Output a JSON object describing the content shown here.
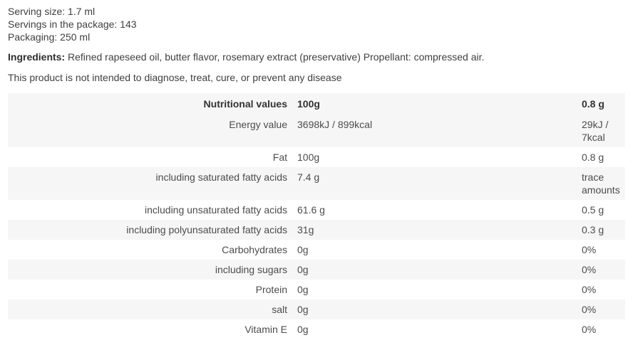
{
  "product_info": {
    "serving_size": "Serving size: 1.7 ml",
    "servings_in_package": "Servings in the package: 143",
    "packaging": "Packaging: 250 ml",
    "ingredients_label": "Ingredients:",
    "ingredients_text": " Refined rapeseed oil, butter flavor, rosemary extract (preservative) Propellant: compressed air.",
    "disclaimer": "This product is not intended to diagnose, treat, cure, or prevent any disease"
  },
  "nutrition_table": {
    "stripe_color": "#f6f6f6",
    "headers": {
      "col_label": "Nutritional values",
      "col_100g": "100g",
      "col_serving": "0.8 g"
    },
    "rows": [
      {
        "label": "Energy value",
        "per_100g": "3698kJ / 899kcal",
        "per_serving": "29kJ / 7kcal"
      },
      {
        "label": "Fat",
        "per_100g": "100g",
        "per_serving": "0.8 g"
      },
      {
        "label": "including saturated fatty acids",
        "per_100g": "7.4 g",
        "per_serving": "trace amounts"
      },
      {
        "label": "including unsaturated fatty acids",
        "per_100g": "61.6 g",
        "per_serving": "0.5 g"
      },
      {
        "label": "including polyunsaturated fatty acids",
        "per_100g": "31g",
        "per_serving": "0.3 g"
      },
      {
        "label": "Carbohydrates",
        "per_100g": "0g",
        "per_serving": "0%"
      },
      {
        "label": "including sugars",
        "per_100g": "0g",
        "per_serving": "0%"
      },
      {
        "label": "Protein",
        "per_100g": "0g",
        "per_serving": "0%"
      },
      {
        "label": "salt",
        "per_100g": "0g",
        "per_serving": "0%"
      },
      {
        "label": "Vitamin E",
        "per_100g": "0g",
        "per_serving": "0%"
      }
    ]
  }
}
